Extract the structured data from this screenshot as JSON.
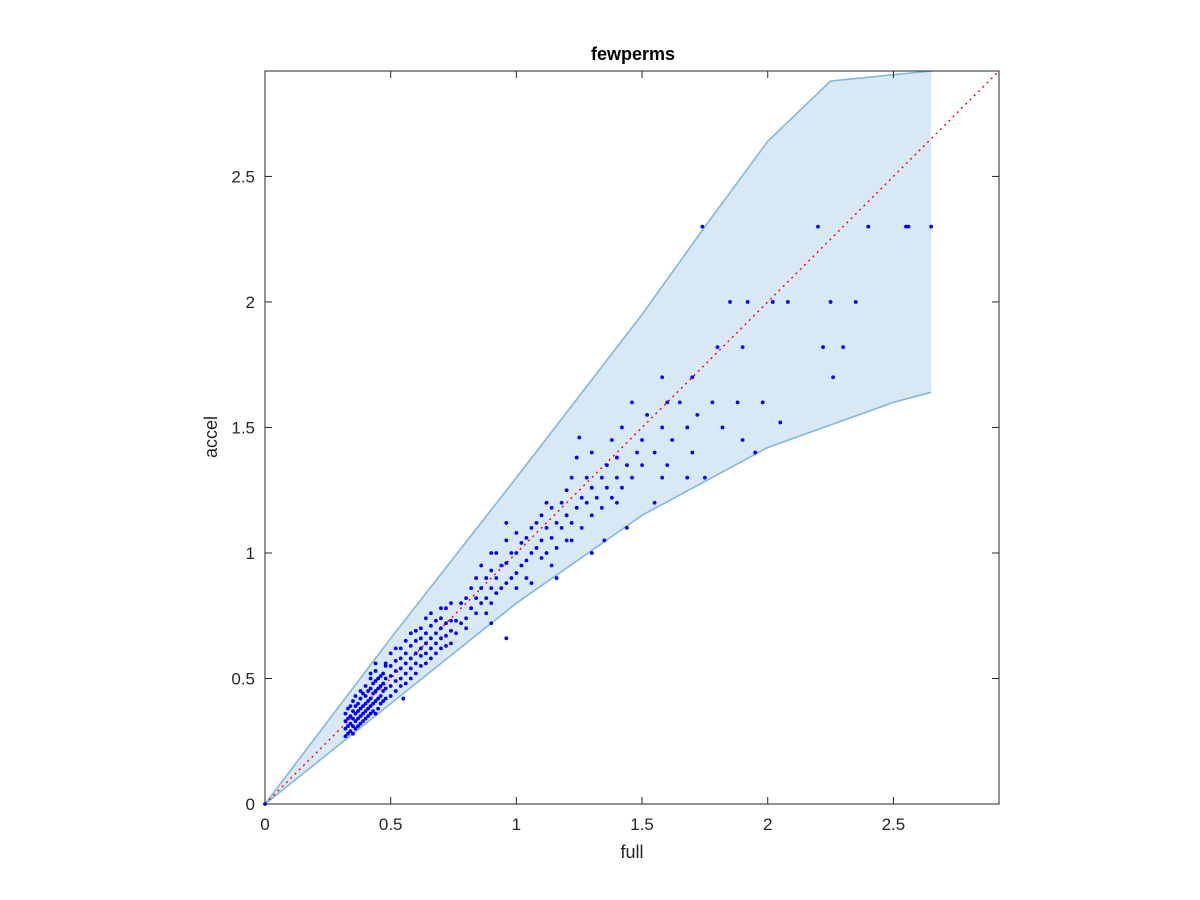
{
  "chart_data": {
    "type": "scatter",
    "title": "fewperms",
    "xlabel": "full",
    "ylabel": "accel",
    "xlim": [
      0,
      2.92
    ],
    "ylim": [
      0,
      2.92
    ],
    "xticks": [
      0,
      0.5,
      1,
      1.5,
      2,
      2.5
    ],
    "yticks": [
      0,
      0.5,
      1,
      1.5,
      2,
      2.5
    ],
    "xtick_labels": [
      "0",
      "0.5",
      "1",
      "1.5",
      "2",
      "2.5"
    ],
    "ytick_labels": [
      "0",
      "0.5",
      "1",
      "1.5",
      "2",
      "2.5"
    ],
    "grid": false,
    "reference_line": {
      "x": [
        0,
        2.92
      ],
      "y": [
        0,
        2.92
      ],
      "style": "dotted",
      "color": "#ff0000"
    },
    "band": {
      "fill_color": "#d8e8f4",
      "edge_color": "#84b7dc",
      "upper": [
        [
          0,
          0
        ],
        [
          0.5,
          0.66
        ],
        [
          1,
          1.3
        ],
        [
          1.5,
          1.95
        ],
        [
          1.75,
          2.3
        ],
        [
          2,
          2.64
        ],
        [
          2.25,
          2.88
        ],
        [
          2.65,
          2.92
        ]
      ],
      "lower": [
        [
          0,
          0
        ],
        [
          0.5,
          0.4
        ],
        [
          1,
          0.8
        ],
        [
          1.5,
          1.15
        ],
        [
          2,
          1.42
        ],
        [
          2.5,
          1.6
        ],
        [
          2.65,
          1.64
        ]
      ],
      "right_edge_x": 2.65
    },
    "point_color": "#0000ff",
    "points": [
      [
        0.0,
        0.0
      ],
      [
        0.32,
        0.27
      ],
      [
        0.32,
        0.3
      ],
      [
        0.32,
        0.33
      ],
      [
        0.32,
        0.36
      ],
      [
        0.33,
        0.28
      ],
      [
        0.33,
        0.31
      ],
      [
        0.33,
        0.34
      ],
      [
        0.33,
        0.38
      ],
      [
        0.34,
        0.29
      ],
      [
        0.34,
        0.32
      ],
      [
        0.34,
        0.35
      ],
      [
        0.34,
        0.39
      ],
      [
        0.35,
        0.28
      ],
      [
        0.35,
        0.31
      ],
      [
        0.35,
        0.34
      ],
      [
        0.35,
        0.37
      ],
      [
        0.35,
        0.41
      ],
      [
        0.36,
        0.3
      ],
      [
        0.36,
        0.33
      ],
      [
        0.36,
        0.36
      ],
      [
        0.36,
        0.39
      ],
      [
        0.36,
        0.43
      ],
      [
        0.37,
        0.31
      ],
      [
        0.37,
        0.34
      ],
      [
        0.37,
        0.37
      ],
      [
        0.37,
        0.4
      ],
      [
        0.38,
        0.32
      ],
      [
        0.38,
        0.35
      ],
      [
        0.38,
        0.38
      ],
      [
        0.38,
        0.42
      ],
      [
        0.39,
        0.33
      ],
      [
        0.39,
        0.36
      ],
      [
        0.39,
        0.39
      ],
      [
        0.39,
        0.44
      ],
      [
        0.4,
        0.34
      ],
      [
        0.4,
        0.37
      ],
      [
        0.4,
        0.4
      ],
      [
        0.4,
        0.43
      ],
      [
        0.4,
        0.47
      ],
      [
        0.41,
        0.35
      ],
      [
        0.41,
        0.38
      ],
      [
        0.41,
        0.41
      ],
      [
        0.41,
        0.45
      ],
      [
        0.42,
        0.36
      ],
      [
        0.42,
        0.39
      ],
      [
        0.42,
        0.42
      ],
      [
        0.42,
        0.46
      ],
      [
        0.42,
        0.5
      ],
      [
        0.43,
        0.37
      ],
      [
        0.43,
        0.4
      ],
      [
        0.43,
        0.44
      ],
      [
        0.43,
        0.48
      ],
      [
        0.44,
        0.36
      ],
      [
        0.44,
        0.41
      ],
      [
        0.44,
        0.45
      ],
      [
        0.44,
        0.49
      ],
      [
        0.44,
        0.53
      ],
      [
        0.45,
        0.38
      ],
      [
        0.45,
        0.42
      ],
      [
        0.45,
        0.46
      ],
      [
        0.45,
        0.5
      ],
      [
        0.46,
        0.4
      ],
      [
        0.46,
        0.43
      ],
      [
        0.46,
        0.47
      ],
      [
        0.46,
        0.51
      ],
      [
        0.47,
        0.41
      ],
      [
        0.47,
        0.45
      ],
      [
        0.47,
        0.48
      ],
      [
        0.47,
        0.52
      ],
      [
        0.48,
        0.42
      ],
      [
        0.48,
        0.46
      ],
      [
        0.48,
        0.5
      ],
      [
        0.48,
        0.55
      ],
      [
        0.5,
        0.43
      ],
      [
        0.5,
        0.47
      ],
      [
        0.5,
        0.51
      ],
      [
        0.5,
        0.55
      ],
      [
        0.5,
        0.6
      ],
      [
        0.52,
        0.45
      ],
      [
        0.52,
        0.49
      ],
      [
        0.52,
        0.53
      ],
      [
        0.52,
        0.57
      ],
      [
        0.54,
        0.47
      ],
      [
        0.54,
        0.5
      ],
      [
        0.54,
        0.54
      ],
      [
        0.54,
        0.58
      ],
      [
        0.54,
        0.62
      ],
      [
        0.56,
        0.48
      ],
      [
        0.56,
        0.52
      ],
      [
        0.56,
        0.56
      ],
      [
        0.56,
        0.6
      ],
      [
        0.56,
        0.65
      ],
      [
        0.58,
        0.5
      ],
      [
        0.58,
        0.54
      ],
      [
        0.58,
        0.58
      ],
      [
        0.58,
        0.63
      ],
      [
        0.6,
        0.52
      ],
      [
        0.6,
        0.56
      ],
      [
        0.6,
        0.6
      ],
      [
        0.6,
        0.65
      ],
      [
        0.6,
        0.69
      ],
      [
        0.62,
        0.55
      ],
      [
        0.62,
        0.59
      ],
      [
        0.62,
        0.62
      ],
      [
        0.62,
        0.66
      ],
      [
        0.64,
        0.56
      ],
      [
        0.64,
        0.6
      ],
      [
        0.64,
        0.64
      ],
      [
        0.64,
        0.68
      ],
      [
        0.66,
        0.58
      ],
      [
        0.66,
        0.62
      ],
      [
        0.66,
        0.66
      ],
      [
        0.66,
        0.71
      ],
      [
        0.68,
        0.6
      ],
      [
        0.68,
        0.64
      ],
      [
        0.68,
        0.68
      ],
      [
        0.68,
        0.73
      ],
      [
        0.7,
        0.62
      ],
      [
        0.7,
        0.66
      ],
      [
        0.7,
        0.7
      ],
      [
        0.7,
        0.74
      ],
      [
        0.72,
        0.63
      ],
      [
        0.72,
        0.67
      ],
      [
        0.72,
        0.72
      ],
      [
        0.72,
        0.78
      ],
      [
        0.74,
        0.64
      ],
      [
        0.74,
        0.69
      ],
      [
        0.74,
        0.73
      ],
      [
        0.74,
        0.8
      ],
      [
        0.76,
        0.68
      ],
      [
        0.76,
        0.73
      ],
      [
        0.78,
        0.72
      ],
      [
        0.78,
        0.8
      ],
      [
        0.8,
        0.74
      ],
      [
        0.8,
        0.82
      ],
      [
        0.82,
        0.78
      ],
      [
        0.82,
        0.86
      ],
      [
        0.84,
        0.76
      ],
      [
        0.84,
        0.82
      ],
      [
        0.84,
        0.9
      ],
      [
        0.86,
        0.8
      ],
      [
        0.86,
        0.86
      ],
      [
        0.86,
        0.95
      ],
      [
        0.88,
        0.82
      ],
      [
        0.88,
        0.9
      ],
      [
        0.9,
        0.8
      ],
      [
        0.9,
        0.86
      ],
      [
        0.9,
        0.93
      ],
      [
        0.92,
        0.84
      ],
      [
        0.92,
        0.9
      ],
      [
        0.92,
        1.0
      ],
      [
        0.94,
        0.86
      ],
      [
        0.94,
        0.95
      ],
      [
        0.96,
        0.88
      ],
      [
        0.96,
        0.96
      ],
      [
        0.96,
        1.05
      ],
      [
        0.98,
        0.9
      ],
      [
        0.98,
        1.0
      ],
      [
        1.0,
        0.92
      ],
      [
        1.0,
        1.0
      ],
      [
        1.0,
        1.08
      ],
      [
        1.02,
        0.95
      ],
      [
        1.02,
        1.04
      ],
      [
        1.04,
        0.97
      ],
      [
        1.04,
        1.06
      ],
      [
        1.06,
        1.0
      ],
      [
        1.06,
        1.1
      ],
      [
        1.08,
        1.02
      ],
      [
        1.08,
        1.12
      ],
      [
        1.1,
        0.98
      ],
      [
        1.1,
        1.05
      ],
      [
        1.1,
        1.15
      ],
      [
        1.12,
        1.0
      ],
      [
        1.12,
        1.1
      ],
      [
        1.14,
        1.06
      ],
      [
        1.14,
        1.18
      ],
      [
        1.16,
        1.02
      ],
      [
        1.16,
        1.12
      ],
      [
        1.18,
        1.1
      ],
      [
        1.18,
        1.2
      ],
      [
        1.2,
        1.05
      ],
      [
        1.2,
        1.15
      ],
      [
        1.2,
        1.25
      ],
      [
        1.22,
        1.12
      ],
      [
        1.22,
        1.3
      ],
      [
        1.24,
        1.18
      ],
      [
        1.24,
        1.38
      ],
      [
        1.26,
        1.1
      ],
      [
        1.26,
        1.22
      ],
      [
        1.28,
        1.2
      ],
      [
        1.28,
        1.3
      ],
      [
        1.3,
        1.15
      ],
      [
        1.3,
        1.26
      ],
      [
        1.3,
        1.4
      ],
      [
        1.32,
        1.22
      ],
      [
        1.34,
        1.3
      ],
      [
        1.34,
        1.18
      ],
      [
        1.36,
        1.35
      ],
      [
        1.36,
        1.26
      ],
      [
        1.38,
        1.22
      ],
      [
        1.38,
        1.45
      ],
      [
        1.4,
        1.3
      ],
      [
        1.4,
        1.38
      ],
      [
        1.42,
        1.26
      ],
      [
        1.42,
        1.5
      ],
      [
        1.44,
        1.35
      ],
      [
        1.46,
        1.3
      ],
      [
        1.46,
        1.6
      ],
      [
        1.48,
        1.4
      ],
      [
        1.5,
        1.35
      ],
      [
        1.5,
        1.45
      ],
      [
        1.52,
        1.55
      ],
      [
        1.55,
        1.4
      ],
      [
        1.58,
        1.5
      ],
      [
        1.6,
        1.35
      ],
      [
        1.62,
        1.45
      ],
      [
        1.65,
        1.6
      ],
      [
        1.68,
        1.5
      ],
      [
        1.7,
        1.4
      ],
      [
        1.72,
        1.55
      ],
      [
        1.74,
        2.3
      ],
      [
        1.75,
        1.3
      ],
      [
        1.78,
        1.6
      ],
      [
        1.8,
        1.82
      ],
      [
        1.82,
        1.5
      ],
      [
        1.85,
        2.0
      ],
      [
        1.88,
        1.6
      ],
      [
        1.9,
        1.82
      ],
      [
        1.92,
        2.0
      ],
      [
        1.95,
        1.4
      ],
      [
        1.98,
        1.6
      ],
      [
        2.02,
        2.0
      ],
      [
        2.05,
        1.52
      ],
      [
        2.08,
        2.0
      ],
      [
        2.2,
        2.3
      ],
      [
        2.22,
        1.82
      ],
      [
        2.25,
        2.0
      ],
      [
        2.26,
        1.7
      ],
      [
        2.3,
        1.82
      ],
      [
        2.35,
        2.0
      ],
      [
        2.4,
        2.3
      ],
      [
        2.55,
        2.3
      ],
      [
        2.56,
        2.3
      ],
      [
        2.65,
        2.3
      ],
      [
        0.48,
        0.56
      ],
      [
        0.44,
        0.56
      ],
      [
        0.52,
        0.62
      ],
      [
        0.96,
        0.66
      ],
      [
        0.55,
        0.42
      ],
      [
        0.38,
        0.45
      ],
      [
        0.42,
        0.52
      ],
      [
        0.62,
        0.7
      ],
      [
        0.66,
        0.76
      ],
      [
        0.7,
        0.78
      ],
      [
        0.58,
        0.68
      ],
      [
        0.64,
        0.74
      ],
      [
        0.8,
        0.7
      ],
      [
        0.88,
        0.76
      ],
      [
        0.9,
        0.72
      ],
      [
        1.0,
        0.86
      ],
      [
        1.04,
        0.9
      ],
      [
        1.14,
        0.95
      ],
      [
        1.22,
        1.05
      ],
      [
        1.25,
        1.46
      ],
      [
        1.12,
        1.2
      ],
      [
        0.96,
        1.12
      ],
      [
        0.9,
        1.0
      ],
      [
        1.06,
        0.88
      ],
      [
        1.16,
        0.9
      ],
      [
        1.3,
        1.0
      ],
      [
        1.44,
        1.1
      ],
      [
        1.55,
        1.2
      ],
      [
        1.68,
        1.3
      ],
      [
        1.35,
        1.05
      ],
      [
        1.4,
        1.2
      ],
      [
        1.58,
        1.3
      ],
      [
        1.9,
        1.45
      ],
      [
        1.6,
        1.6
      ],
      [
        1.7,
        1.7
      ],
      [
        1.58,
        1.7
      ]
    ]
  }
}
